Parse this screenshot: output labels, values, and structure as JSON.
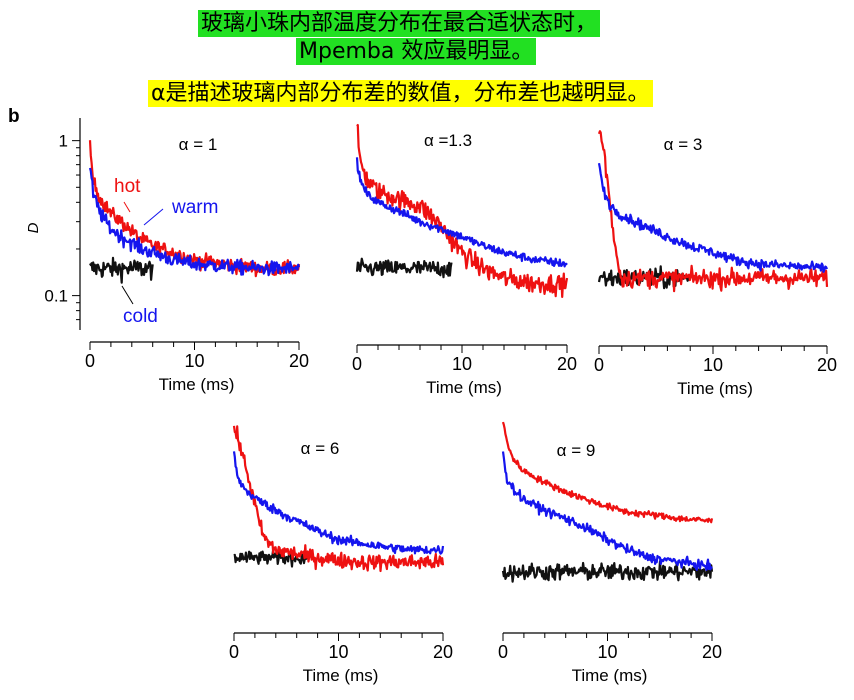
{
  "header": {
    "line1": "玻璃小珠内部温度分布在最合适状态时，",
    "line2": "Mpemba 效应最明显。",
    "line3": "α是描述玻璃内部分布差的数值，分布差也越明显。",
    "line1_bg": "#22e022",
    "line3_bg": "#ffff00"
  },
  "panel_label": "b",
  "colors": {
    "hot": "#ee1111",
    "warm": "#1515ee",
    "cold": "#111111"
  },
  "chart_data": [
    {
      "type": "line",
      "title": "α = 1",
      "alpha": 1,
      "xlabel": "Time (ms)",
      "ylabel": "D",
      "xlim": [
        0,
        20
      ],
      "ylim": [
        0.06,
        1.4
      ],
      "yscale": "log",
      "xticks": [
        "0",
        "10",
        "20"
      ],
      "yticks": [
        "0.1",
        "1"
      ],
      "legend": [
        "hot",
        "warm",
        "cold"
      ],
      "series": [
        {
          "name": "hot",
          "x": [
            0,
            0.3,
            1,
            2,
            3,
            4,
            5,
            6,
            8,
            10,
            13,
            16,
            20
          ],
          "values": [
            0.9,
            0.55,
            0.42,
            0.34,
            0.3,
            0.26,
            0.23,
            0.21,
            0.19,
            0.17,
            0.16,
            0.15,
            0.15
          ],
          "noise": 0.1
        },
        {
          "name": "warm",
          "x": [
            0,
            0.3,
            1,
            2,
            3,
            4,
            5,
            6,
            8,
            10,
            13,
            16,
            20
          ],
          "values": [
            0.7,
            0.45,
            0.34,
            0.27,
            0.24,
            0.22,
            0.2,
            0.19,
            0.17,
            0.16,
            0.155,
            0.15,
            0.15
          ],
          "noise": 0.1
        },
        {
          "name": "cold",
          "x": [
            0,
            6
          ],
          "values": [
            0.15,
            0.15
          ],
          "noise": 0.14
        }
      ]
    },
    {
      "type": "line",
      "title": "α =1.3",
      "alpha": 1.3,
      "xlabel": "Time (ms)",
      "xlim": [
        0,
        20
      ],
      "ylim": [
        0.06,
        1.4
      ],
      "yscale": "log",
      "xticks": [
        "0",
        "10",
        "20"
      ],
      "series": [
        {
          "name": "hot",
          "x": [
            0,
            0.3,
            1,
            2,
            4,
            6,
            7,
            8,
            9,
            10,
            12,
            14,
            17,
            20
          ],
          "values": [
            1.2,
            0.75,
            0.55,
            0.47,
            0.42,
            0.38,
            0.33,
            0.28,
            0.23,
            0.19,
            0.15,
            0.13,
            0.12,
            0.12
          ],
          "noise": 0.14
        },
        {
          "name": "warm",
          "x": [
            0,
            0.3,
            1,
            2,
            4,
            6,
            8,
            10,
            12,
            14,
            17,
            20
          ],
          "values": [
            0.75,
            0.55,
            0.45,
            0.4,
            0.35,
            0.3,
            0.27,
            0.24,
            0.21,
            0.19,
            0.17,
            0.16
          ],
          "noise": 0.06
        },
        {
          "name": "cold",
          "x": [
            0,
            9
          ],
          "values": [
            0.15,
            0.15
          ],
          "noise": 0.12
        }
      ]
    },
    {
      "type": "line",
      "title": "α = 3",
      "alpha": 3,
      "xlabel": "Time (ms)",
      "xlim": [
        0,
        20
      ],
      "ylim": [
        0.06,
        1.4
      ],
      "yscale": "log",
      "xticks": [
        "0",
        "10",
        "20"
      ],
      "series": [
        {
          "name": "hot",
          "x": [
            0,
            0.4,
            0.8,
            1.2,
            1.6,
            2,
            4,
            8,
            12,
            16,
            20
          ],
          "values": [
            1.2,
            0.9,
            0.5,
            0.28,
            0.17,
            0.13,
            0.13,
            0.13,
            0.13,
            0.13,
            0.13
          ],
          "noise": 0.13
        },
        {
          "name": "warm",
          "x": [
            0,
            0.3,
            1,
            2,
            4,
            6,
            8,
            10,
            12,
            14,
            17,
            20
          ],
          "values": [
            0.75,
            0.5,
            0.38,
            0.33,
            0.28,
            0.24,
            0.21,
            0.19,
            0.17,
            0.16,
            0.155,
            0.15
          ],
          "noise": 0.07
        },
        {
          "name": "cold",
          "x": [
            0,
            8
          ],
          "values": [
            0.13,
            0.13
          ],
          "noise": 0.14
        }
      ]
    },
    {
      "type": "line",
      "title": "α = 6",
      "alpha": 6,
      "xlabel": "Time (ms)",
      "xlim": [
        0,
        20
      ],
      "ylim": [
        0.06,
        1.4
      ],
      "yscale": "log",
      "xticks": [
        "0",
        "10",
        "20"
      ],
      "series": [
        {
          "name": "hot",
          "x": [
            0,
            0.5,
            1,
            1.5,
            2,
            2.5,
            3,
            4,
            8,
            12,
            16,
            20
          ],
          "values": [
            1.2,
            0.95,
            0.7,
            0.5,
            0.35,
            0.25,
            0.2,
            0.17,
            0.15,
            0.14,
            0.14,
            0.14
          ],
          "noise": 0.12
        },
        {
          "name": "warm",
          "x": [
            0,
            0.3,
            1,
            2,
            4,
            6,
            8,
            10,
            12,
            14,
            17,
            20
          ],
          "values": [
            0.8,
            0.55,
            0.45,
            0.39,
            0.32,
            0.27,
            0.23,
            0.2,
            0.19,
            0.18,
            0.17,
            0.17
          ],
          "noise": 0.07
        },
        {
          "name": "cold",
          "x": [
            0,
            7
          ],
          "values": [
            0.15,
            0.15
          ],
          "noise": 0.1
        }
      ]
    },
    {
      "type": "line",
      "title": "α = 9",
      "alpha": 9,
      "xlabel": "Time (ms)",
      "xlim": [
        0,
        20
      ],
      "ylim": [
        0.06,
        1.4
      ],
      "yscale": "log",
      "xticks": [
        "0",
        "10",
        "20"
      ],
      "series": [
        {
          "name": "hot",
          "x": [
            0,
            0.5,
            1,
            2,
            4,
            6,
            8,
            10,
            12,
            14,
            17,
            20
          ],
          "values": [
            1.3,
            0.9,
            0.72,
            0.6,
            0.5,
            0.43,
            0.38,
            0.34,
            0.31,
            0.3,
            0.28,
            0.27
          ],
          "noise": 0.05
        },
        {
          "name": "warm",
          "x": [
            0,
            0.3,
            1,
            2,
            4,
            6,
            8,
            10,
            12,
            14,
            17,
            20
          ],
          "values": [
            0.85,
            0.55,
            0.45,
            0.38,
            0.32,
            0.28,
            0.24,
            0.2,
            0.17,
            0.15,
            0.14,
            0.13
          ],
          "noise": 0.07
        },
        {
          "name": "cold",
          "x": [
            0,
            20
          ],
          "values": [
            0.12,
            0.12
          ],
          "noise": 0.13
        }
      ]
    }
  ]
}
